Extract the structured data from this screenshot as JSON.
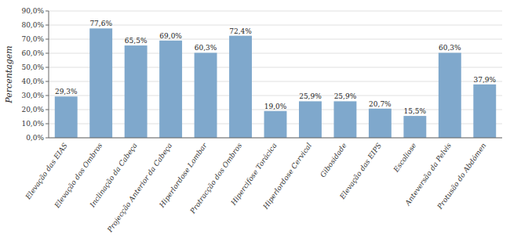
{
  "chart_data": {
    "type": "bar",
    "categories": [
      "Elevação das EIAS",
      "Elevação dos Ombros",
      "Inclinação da Cabeça",
      "Projecção Anterior da Cabeça",
      "Hiperlordose Lombar",
      "Protracção dos Ombros",
      "Hipercifose Torácica",
      "Hiperlordose Cervical",
      "Gibosidade",
      "Elevação das EIPS",
      "Escoliose",
      "Anteversão da Pelvis",
      "Protusão do Abdómen"
    ],
    "values": [
      29.3,
      77.6,
      65.5,
      69.0,
      60.3,
      72.4,
      19.0,
      25.9,
      25.9,
      20.7,
      15.5,
      60.3,
      37.9
    ],
    "value_labels": [
      "29,3%",
      "77,6%",
      "65,5%",
      "69,0%",
      "60,3%",
      "72,4%",
      "19,0%",
      "25,9%",
      "25,9%",
      "20,7%",
      "15,5%",
      "60,3%",
      "37,9%"
    ],
    "data_labels": true,
    "color": "#7fa8cc",
    "ylabel": "Percentagem",
    "ylim": [
      0,
      90
    ],
    "yticks": [
      {
        "value": 0,
        "label": "0,0%"
      },
      {
        "value": 10,
        "label": "10,0%"
      },
      {
        "value": 20,
        "label": "20,0%"
      },
      {
        "value": 30,
        "label": "30,0%"
      },
      {
        "value": 40,
        "label": "40,0%"
      },
      {
        "value": 50,
        "label": "50,0%"
      },
      {
        "value": 60,
        "label": "60,0%"
      },
      {
        "value": 70,
        "label": "70,0%"
      },
      {
        "value": 80,
        "label": "80,0%"
      },
      {
        "value": 90,
        "label": "90,0%"
      }
    ],
    "grid": true
  }
}
